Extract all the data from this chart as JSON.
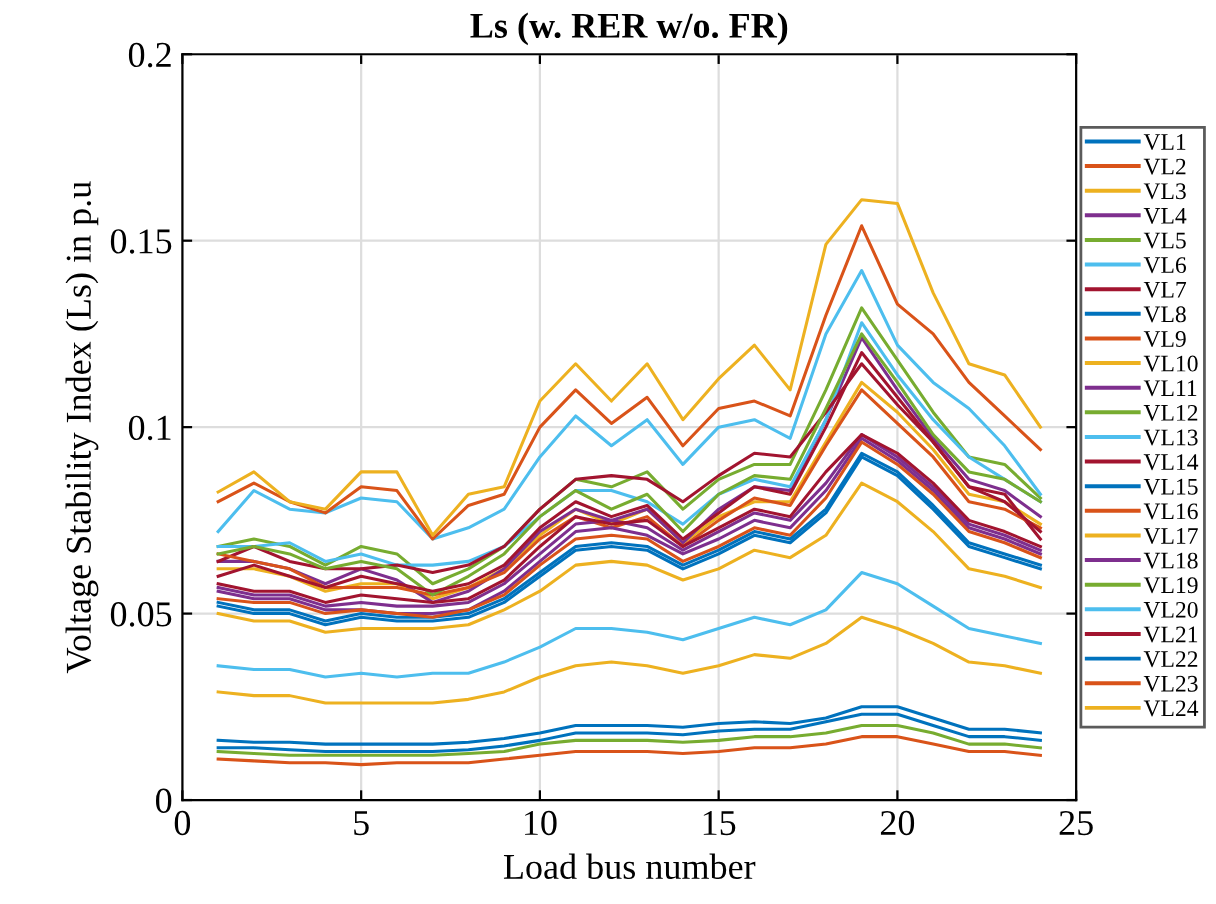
{
  "chart_data": {
    "type": "line",
    "title": "Ls (w. RER w/o. FR)",
    "xlabel": "Load bus number",
    "ylabel": "Voltage Stability Index (Ls) in p.u",
    "x": [
      1,
      2,
      3,
      4,
      5,
      6,
      7,
      8,
      9,
      10,
      11,
      12,
      13,
      14,
      15,
      16,
      17,
      18,
      19,
      20,
      21,
      22,
      23,
      24
    ],
    "xlim": [
      0,
      25
    ],
    "xticks": [
      0,
      5,
      10,
      15,
      20,
      25
    ],
    "ylim": [
      0,
      0.2
    ],
    "yticks": [
      0,
      0.05,
      0.1,
      0.15,
      0.2
    ],
    "grid": true,
    "legend": "right",
    "marker": "none",
    "line_style": "solid",
    "series": [
      {
        "name": "VL1",
        "color": "#0072bd",
        "values": [
          0.052,
          0.05,
          0.05,
          0.047,
          0.049,
          0.048,
          0.048,
          0.049,
          0.053,
          0.06,
          0.067,
          0.068,
          0.067,
          0.062,
          0.066,
          0.071,
          0.069,
          0.077,
          0.092,
          0.087,
          0.078,
          0.068,
          0.065,
          0.062
        ]
      },
      {
        "name": "VL2",
        "color": "#d95319",
        "values": [
          0.011,
          0.0105,
          0.01,
          0.01,
          0.0095,
          0.01,
          0.01,
          0.01,
          0.011,
          0.012,
          0.013,
          0.013,
          0.013,
          0.0125,
          0.013,
          0.014,
          0.014,
          0.015,
          0.017,
          0.017,
          0.015,
          0.013,
          0.013,
          0.012
        ]
      },
      {
        "name": "VL3",
        "color": "#edb120",
        "values": [
          0.062,
          0.062,
          0.06,
          0.056,
          0.058,
          0.058,
          0.054,
          0.057,
          0.062,
          0.071,
          0.078,
          0.074,
          0.078,
          0.069,
          0.076,
          0.08,
          0.08,
          0.096,
          0.112,
          0.104,
          0.094,
          0.082,
          0.08,
          0.074
        ]
      },
      {
        "name": "VL4",
        "color": "#7e2f8e",
        "values": [
          0.064,
          0.064,
          0.062,
          0.058,
          0.062,
          0.059,
          0.053,
          0.056,
          0.062,
          0.072,
          0.078,
          0.075,
          0.078,
          0.069,
          0.078,
          0.084,
          0.083,
          0.102,
          0.124,
          0.11,
          0.097,
          0.086,
          0.083,
          0.076
        ]
      },
      {
        "name": "VL5",
        "color": "#77ac30",
        "values": [
          0.068,
          0.07,
          0.068,
          0.063,
          0.068,
          0.066,
          0.058,
          0.062,
          0.068,
          0.078,
          0.086,
          0.084,
          0.088,
          0.078,
          0.086,
          0.09,
          0.09,
          0.11,
          0.132,
          0.118,
          0.104,
          0.092,
          0.09,
          0.081
        ]
      },
      {
        "name": "VL6",
        "color": "#4dbeee",
        "values": [
          0.068,
          0.068,
          0.069,
          0.064,
          0.066,
          0.063,
          0.063,
          0.064,
          0.068,
          0.076,
          0.083,
          0.083,
          0.08,
          0.074,
          0.082,
          0.086,
          0.084,
          0.102,
          0.128,
          0.114,
          0.102,
          0.092,
          0.086,
          0.08
        ]
      },
      {
        "name": "VL7",
        "color": "#a2142f",
        "values": [
          0.064,
          0.068,
          0.064,
          0.062,
          0.062,
          0.063,
          0.061,
          0.063,
          0.068,
          0.078,
          0.086,
          0.087,
          0.086,
          0.08,
          0.087,
          0.093,
          0.092,
          0.104,
          0.117,
          0.106,
          0.096,
          0.084,
          0.082,
          0.07
        ]
      },
      {
        "name": "VL8",
        "color": "#0072bd",
        "values": [
          0.053,
          0.051,
          0.051,
          0.048,
          0.05,
          0.049,
          0.049,
          0.05,
          0.054,
          0.061,
          0.068,
          0.069,
          0.068,
          0.063,
          0.067,
          0.072,
          0.07,
          0.078,
          0.093,
          0.088,
          0.079,
          0.069,
          0.066,
          0.063
        ]
      },
      {
        "name": "VL9",
        "color": "#d95319",
        "values": [
          0.066,
          0.064,
          0.062,
          0.057,
          0.057,
          0.057,
          0.055,
          0.057,
          0.061,
          0.07,
          0.076,
          0.073,
          0.076,
          0.068,
          0.075,
          0.081,
          0.079,
          0.095,
          0.11,
          0.101,
          0.092,
          0.08,
          0.078,
          0.073
        ]
      },
      {
        "name": "VL10",
        "color": "#edb120",
        "values": [
          0.029,
          0.028,
          0.028,
          0.026,
          0.026,
          0.026,
          0.026,
          0.027,
          0.029,
          0.033,
          0.036,
          0.037,
          0.036,
          0.034,
          0.036,
          0.039,
          0.038,
          0.042,
          0.049,
          0.046,
          0.042,
          0.037,
          0.036,
          0.034
        ]
      },
      {
        "name": "VL11",
        "color": "#7e2f8e",
        "values": [
          0.056,
          0.054,
          0.054,
          0.051,
          0.051,
          0.05,
          0.05,
          0.051,
          0.056,
          0.064,
          0.072,
          0.073,
          0.071,
          0.066,
          0.07,
          0.075,
          0.073,
          0.083,
          0.097,
          0.091,
          0.083,
          0.073,
          0.07,
          0.066
        ]
      },
      {
        "name": "VL12",
        "color": "#77ac30",
        "values": [
          0.066,
          0.068,
          0.066,
          0.062,
          0.064,
          0.062,
          0.055,
          0.06,
          0.066,
          0.076,
          0.083,
          0.078,
          0.082,
          0.072,
          0.082,
          0.087,
          0.086,
          0.105,
          0.125,
          0.112,
          0.098,
          0.088,
          0.086,
          0.08
        ]
      },
      {
        "name": "VL13",
        "color": "#4dbeee",
        "values": [
          0.036,
          0.035,
          0.035,
          0.033,
          0.034,
          0.033,
          0.034,
          0.034,
          0.037,
          0.041,
          0.046,
          0.046,
          0.045,
          0.043,
          0.046,
          0.049,
          0.047,
          0.051,
          0.061,
          0.058,
          0.052,
          0.046,
          0.044,
          0.042
        ]
      },
      {
        "name": "VL14",
        "color": "#a2142f",
        "values": [
          0.06,
          0.063,
          0.06,
          0.057,
          0.06,
          0.058,
          0.056,
          0.058,
          0.063,
          0.073,
          0.08,
          0.076,
          0.079,
          0.07,
          0.077,
          0.084,
          0.082,
          0.1,
          0.12,
          0.108,
          0.096,
          0.084,
          0.08,
          0.072
        ]
      },
      {
        "name": "VL15",
        "color": "#0072bd",
        "values": [
          0.016,
          0.0155,
          0.0155,
          0.015,
          0.015,
          0.015,
          0.015,
          0.0155,
          0.0165,
          0.018,
          0.02,
          0.02,
          0.02,
          0.0195,
          0.0205,
          0.021,
          0.0205,
          0.022,
          0.025,
          0.025,
          0.022,
          0.019,
          0.019,
          0.018
        ]
      },
      {
        "name": "VL16",
        "color": "#d95319",
        "values": [
          0.054,
          0.053,
          0.053,
          0.05,
          0.051,
          0.05,
          0.049,
          0.051,
          0.055,
          0.063,
          0.07,
          0.071,
          0.07,
          0.064,
          0.068,
          0.073,
          0.071,
          0.081,
          0.096,
          0.09,
          0.082,
          0.072,
          0.069,
          0.065
        ]
      },
      {
        "name": "VL17",
        "color": "#edb120",
        "values": [
          0.05,
          0.048,
          0.048,
          0.045,
          0.046,
          0.046,
          0.046,
          0.047,
          0.051,
          0.056,
          0.063,
          0.064,
          0.063,
          0.059,
          0.062,
          0.067,
          0.065,
          0.071,
          0.085,
          0.08,
          0.072,
          0.062,
          0.06,
          0.057
        ]
      },
      {
        "name": "VL18",
        "color": "#7e2f8e",
        "values": [
          0.057,
          0.055,
          0.055,
          0.052,
          0.053,
          0.052,
          0.052,
          0.053,
          0.058,
          0.066,
          0.074,
          0.075,
          0.073,
          0.067,
          0.072,
          0.077,
          0.075,
          0.085,
          0.098,
          0.092,
          0.084,
          0.074,
          0.071,
          0.067
        ]
      },
      {
        "name": "VL19",
        "color": "#77ac30",
        "values": [
          0.013,
          0.0125,
          0.012,
          0.012,
          0.012,
          0.012,
          0.012,
          0.0125,
          0.013,
          0.015,
          0.016,
          0.016,
          0.016,
          0.0155,
          0.016,
          0.017,
          0.017,
          0.018,
          0.02,
          0.02,
          0.018,
          0.015,
          0.015,
          0.014
        ]
      },
      {
        "name": "VL20",
        "color": "#4dbeee",
        "values": [
          0.072,
          0.083,
          0.078,
          0.077,
          0.081,
          0.08,
          0.07,
          0.073,
          0.078,
          0.092,
          0.103,
          0.095,
          0.102,
          0.09,
          0.1,
          0.102,
          0.097,
          0.125,
          0.142,
          0.122,
          0.112,
          0.105,
          0.095,
          0.082
        ]
      },
      {
        "name": "VL21",
        "color": "#a2142f",
        "values": [
          0.058,
          0.056,
          0.056,
          0.053,
          0.055,
          0.054,
          0.053,
          0.054,
          0.059,
          0.068,
          0.076,
          0.074,
          0.075,
          0.068,
          0.073,
          0.078,
          0.076,
          0.088,
          0.098,
          0.093,
          0.085,
          0.075,
          0.072,
          0.068
        ]
      },
      {
        "name": "VL22",
        "color": "#0072bd",
        "values": [
          0.014,
          0.014,
          0.0135,
          0.013,
          0.013,
          0.013,
          0.013,
          0.0135,
          0.0145,
          0.016,
          0.018,
          0.018,
          0.018,
          0.0175,
          0.0185,
          0.019,
          0.019,
          0.021,
          0.023,
          0.023,
          0.02,
          0.017,
          0.017,
          0.016
        ]
      },
      {
        "name": "VL23",
        "color": "#d95319",
        "values": [
          0.08,
          0.085,
          0.08,
          0.077,
          0.084,
          0.083,
          0.07,
          0.079,
          0.082,
          0.1,
          0.11,
          0.101,
          0.108,
          0.095,
          0.105,
          0.107,
          0.103,
          0.13,
          0.154,
          0.133,
          0.125,
          0.112,
          0.103,
          0.094
        ]
      },
      {
        "name": "VL24",
        "color": "#edb120",
        "values": [
          0.0826,
          0.088,
          0.08,
          0.078,
          0.088,
          0.088,
          0.071,
          0.082,
          0.084,
          0.107,
          0.117,
          0.107,
          0.117,
          0.102,
          0.113,
          0.122,
          0.11,
          0.149,
          0.161,
          0.16,
          0.136,
          0.117,
          0.114,
          0.1
        ]
      }
    ]
  }
}
